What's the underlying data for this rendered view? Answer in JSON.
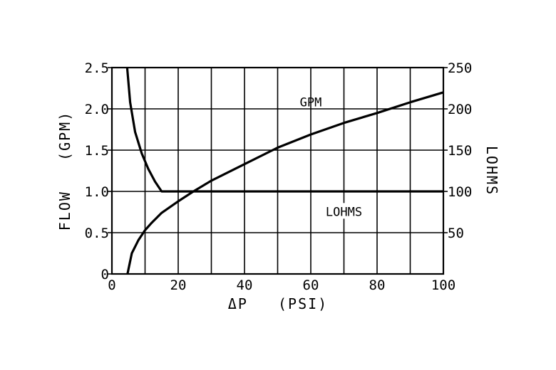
{
  "chart_data": {
    "type": "line",
    "xlabel": "ΔP   (PSI)",
    "ylabel_left": "FLOW   (GPM)",
    "ylabel_right": "LOHMS",
    "xlim": [
      0,
      100
    ],
    "ylim_left": [
      0,
      2.5
    ],
    "ylim_right": [
      0,
      250
    ],
    "x_ticks": [
      0,
      20,
      40,
      60,
      80,
      100
    ],
    "x_tick_labels": [
      "0",
      "20",
      "40",
      "60",
      "80",
      "100"
    ],
    "y_left_ticks": [
      0,
      0.5,
      1.0,
      1.5,
      2.0,
      2.5
    ],
    "y_left_tick_labels": [
      "0",
      "0.5",
      "1.0",
      "1.5",
      "2.0",
      "2.5"
    ],
    "y_right_ticks": [
      50,
      100,
      150,
      200,
      250
    ],
    "y_right_tick_labels": [
      "50",
      "100",
      "150",
      "200",
      "250"
    ],
    "x_grid_step": 10,
    "grid": true,
    "series": [
      {
        "name": "GPM",
        "axis": "left",
        "x": [
          4.7,
          6,
          8,
          10,
          12,
          15,
          20,
          25,
          30,
          40,
          50,
          60,
          70,
          80,
          90,
          100
        ],
        "y": [
          0.0,
          0.25,
          0.41,
          0.53,
          0.62,
          0.74,
          0.88,
          1.01,
          1.13,
          1.33,
          1.53,
          1.69,
          1.83,
          1.95,
          2.08,
          2.2
        ]
      },
      {
        "name": "LOHMS",
        "axis": "right",
        "x": [
          4.6,
          5.5,
          7,
          9,
          11,
          13,
          15,
          20,
          40,
          60,
          80,
          100
        ],
        "y": [
          250,
          208,
          172,
          146,
          127,
          112,
          100,
          100,
          100,
          100,
          100,
          100
        ]
      }
    ]
  }
}
